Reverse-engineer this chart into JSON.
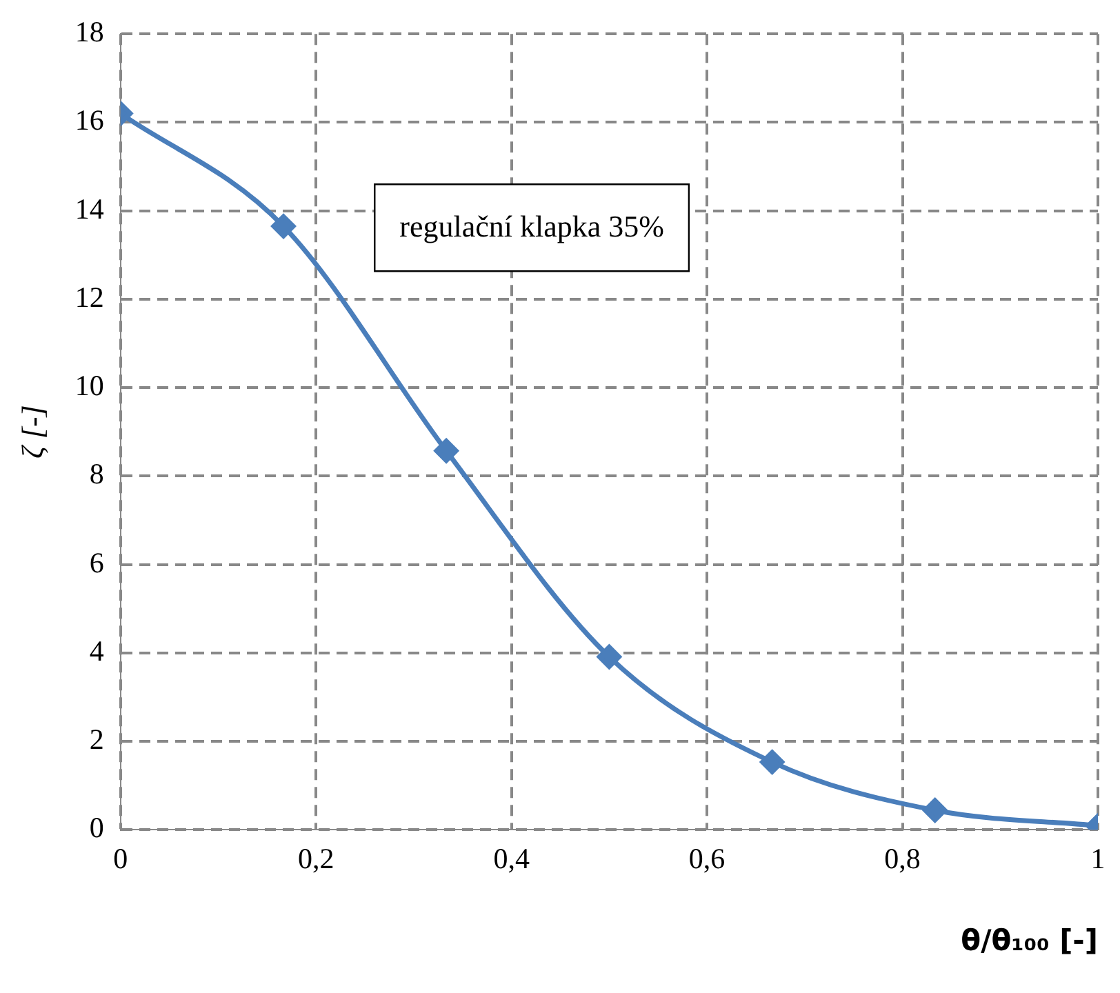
{
  "chart_data": {
    "type": "line",
    "xlabel": "θ/θ₁₀₀ [-]",
    "ylabel": "ζ [-]",
    "x": [
      0,
      0.1667,
      0.3333,
      0.5,
      0.6667,
      0.8333,
      1
    ],
    "series": [
      {
        "color": "#4a7ebb",
        "values": [
          16.2,
          13.65,
          8.57,
          3.91,
          1.53,
          0.44,
          0.09
        ]
      }
    ],
    "xlim": [
      0,
      1
    ],
    "xticks": [
      0,
      {
        "value": 0.2,
        "label": "0,2"
      },
      {
        "value": 0.4,
        "label": "0,4"
      },
      {
        "value": 0.6,
        "label": "0,6"
      },
      {
        "value": 0.8,
        "label": "0,8"
      },
      1
    ],
    "ylim": [
      0,
      18
    ],
    "yticks": [
      0,
      2,
      4,
      6,
      8,
      10,
      12,
      14,
      16,
      18
    ],
    "grid": true,
    "legend": false,
    "marker": "diamond",
    "line_style": "solid",
    "annotations": [
      "regulační klapka 35%"
    ]
  }
}
